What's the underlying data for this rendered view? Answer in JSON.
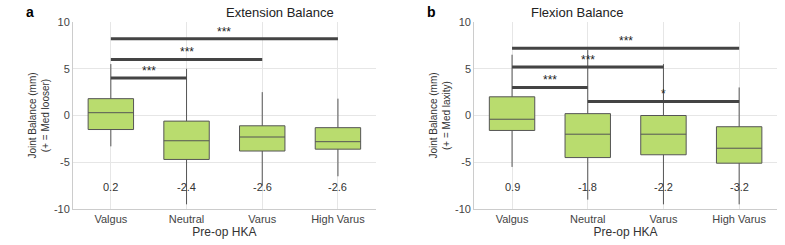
{
  "chart_data": [
    {
      "type": "box",
      "panel": "a",
      "title": "Extension Balance",
      "x_label": "Pre-op HKA",
      "y_label": "Joint Balance (mm)\n(+ = Med looser)",
      "categories": [
        "Valgus",
        "Neutral",
        "Varus",
        "High Varus"
      ],
      "q1": [
        -1.5,
        -4.7,
        -3.8,
        -3.6
      ],
      "median": [
        0.3,
        -2.7,
        -2.3,
        -2.8
      ],
      "q3": [
        1.8,
        -0.6,
        -1.1,
        -1.3
      ],
      "lower": [
        -3.3,
        -9.5,
        -7.5,
        -6.5
      ],
      "upper": [
        5.5,
        5.0,
        2.5,
        1.8
      ],
      "means": [
        0.2,
        -2.4,
        -2.6,
        -2.6
      ],
      "color": "#b9dc6e",
      "ylim": [
        -10,
        10
      ],
      "yticks": [
        -10,
        -5,
        0,
        5,
        10
      ],
      "grid": true,
      "annotations": [
        {
          "from": "Valgus",
          "to": "Neutral",
          "y": 4,
          "text": "***"
        },
        {
          "from": "Valgus",
          "to": "Varus",
          "y": 6,
          "text": "***"
        },
        {
          "from": "Valgus",
          "to": "High Varus",
          "y": 8.2,
          "text": "***"
        }
      ]
    },
    {
      "type": "box",
      "panel": "b",
      "title": "Flexion Balance",
      "x_label": "Pre-op HKA",
      "y_label": "Joint Balance (mm)\n(+ = Med laxity)",
      "categories": [
        "Valgus",
        "Neutral",
        "Varus",
        "High Varus"
      ],
      "q1": [
        -1.6,
        -4.5,
        -4.2,
        -5.1
      ],
      "median": [
        -0.4,
        -2.0,
        -2.0,
        -3.5
      ],
      "q3": [
        2.0,
        0.2,
        0.0,
        -1.2
      ],
      "lower": [
        -5.5,
        -9.0,
        -9.5,
        -9.5
      ],
      "upper": [
        6.5,
        7.0,
        5.5,
        3.0
      ],
      "means": [
        0.9,
        -1.8,
        -2.2,
        -3.2
      ],
      "color": "#b9dc6e",
      "ylim": [
        -10,
        10
      ],
      "yticks": [
        -10,
        -5,
        0,
        5,
        10
      ],
      "grid": true,
      "annotations": [
        {
          "from": "Valgus",
          "to": "Neutral",
          "y": 3,
          "text": "***"
        },
        {
          "from": "Valgus",
          "to": "Varus",
          "y": 5.2,
          "text": "***"
        },
        {
          "from": "Valgus",
          "to": "High Varus",
          "y": 7.2,
          "text": "***"
        },
        {
          "from": "Neutral",
          "to": "High Varus",
          "y": 1.5,
          "text": "*"
        }
      ]
    }
  ]
}
